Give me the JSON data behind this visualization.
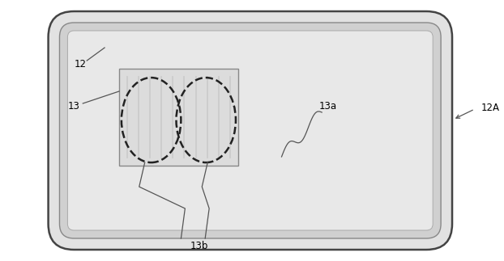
{
  "bg_color": "#ffffff",
  "card_facecolor": "#e2e2e2",
  "card_edge": "#444444",
  "inner1_face": "#d0d0d0",
  "inner1_edge": "#888888",
  "inner2_face": "#e8e8e8",
  "inner2_edge": "#aaaaaa",
  "module_face": "#dcdcdc",
  "module_edge": "#888888",
  "coil_line": "#cccccc",
  "dashed_edge": "#222222",
  "leader_color": "#555555",
  "label_12": "12",
  "label_12A": "12A",
  "label_13": "13",
  "label_13a": "13a",
  "label_13b": "13b",
  "font_size": 8.5,
  "xlim": [
    0,
    622
  ],
  "ylim": [
    0,
    323
  ]
}
